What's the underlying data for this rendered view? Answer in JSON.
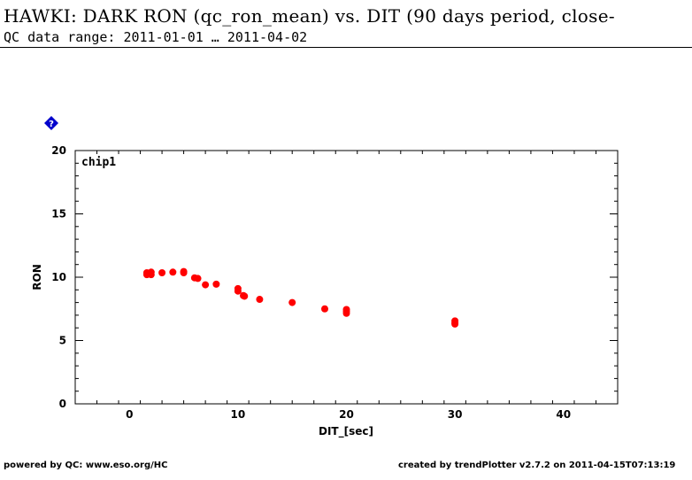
{
  "header": {
    "title": "HAWKI: DARK RON (qc_ron_mean) vs. DIT (90 days period, close-",
    "subtitle": "QC data range: 2011-01-01 … 2011-04-02"
  },
  "footer": {
    "left": "powered by QC: www.eso.org/HC",
    "right": "created by trendPlotter v2.7.2 on 2011-04-15T07:13:19"
  },
  "icons": {
    "help": "help-diamond-icon"
  },
  "colors": {
    "points": "#ff0000",
    "help_icon": "#0000cc",
    "axes": "#000000"
  },
  "chart_data": {
    "type": "scatter",
    "panel_label": "chip1",
    "xlabel": "DIT_[sec]",
    "ylabel": "RON",
    "xlim": [
      -5,
      45
    ],
    "ylim": [
      0,
      20
    ],
    "xticks": [
      0,
      10,
      20,
      30,
      40
    ],
    "yticks": [
      0,
      5,
      10,
      15,
      20
    ],
    "grid": false,
    "series": [
      {
        "points": [
          [
            1.6,
            10.2
          ],
          [
            1.6,
            10.35
          ],
          [
            1.7,
            10.25
          ],
          [
            1.8,
            10.3
          ],
          [
            2.0,
            10.4
          ],
          [
            2.0,
            10.2
          ],
          [
            3.0,
            10.35
          ],
          [
            4.0,
            10.4
          ],
          [
            5.0,
            10.45
          ],
          [
            5.0,
            10.35
          ],
          [
            6.0,
            9.95
          ],
          [
            6.3,
            9.9
          ],
          [
            7.0,
            9.4
          ],
          [
            8.0,
            9.45
          ],
          [
            10.0,
            9.1
          ],
          [
            10.0,
            8.9
          ],
          [
            10.5,
            8.55
          ],
          [
            10.6,
            8.5
          ],
          [
            12.0,
            8.25
          ],
          [
            15.0,
            8.0
          ],
          [
            18.0,
            7.5
          ],
          [
            20.0,
            7.45
          ],
          [
            20.0,
            7.3
          ],
          [
            20.0,
            7.15
          ],
          [
            30.0,
            6.55
          ],
          [
            30.0,
            6.4
          ],
          [
            30.0,
            6.3
          ]
        ]
      }
    ]
  }
}
